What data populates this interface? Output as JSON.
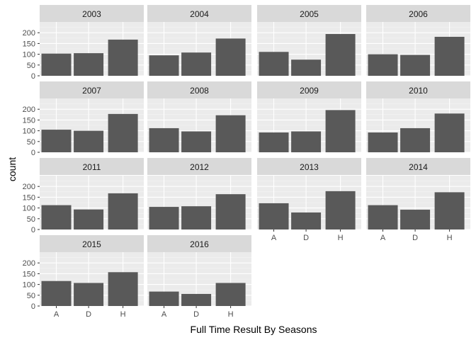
{
  "chart_data": {
    "type": "bar",
    "facet_by": "season",
    "xlabel": "Full Time Result By Seasons",
    "ylabel": "count",
    "categories": [
      "A",
      "D",
      "H"
    ],
    "y_ticks": [
      0,
      50,
      100,
      150,
      200
    ],
    "ylim": [
      0,
      250
    ],
    "grid": true,
    "facets": [
      {
        "label": "2003",
        "values": [
          103,
          105,
          168
        ]
      },
      {
        "label": "2004",
        "values": [
          95,
          108,
          173
        ]
      },
      {
        "label": "2005",
        "values": [
          111,
          75,
          194
        ]
      },
      {
        "label": "2006",
        "values": [
          100,
          97,
          181
        ]
      },
      {
        "label": "2007",
        "values": [
          105,
          100,
          178
        ]
      },
      {
        "label": "2008",
        "values": [
          112,
          97,
          172
        ]
      },
      {
        "label": "2009",
        "values": [
          92,
          97,
          196
        ]
      },
      {
        "label": "2010",
        "values": [
          92,
          112,
          180
        ]
      },
      {
        "label": "2011",
        "values": [
          113,
          93,
          168
        ]
      },
      {
        "label": "2012",
        "values": [
          105,
          108,
          164
        ]
      },
      {
        "label": "2013",
        "values": [
          122,
          79,
          178
        ]
      },
      {
        "label": "2014",
        "values": [
          113,
          92,
          173
        ]
      },
      {
        "label": "2015",
        "values": [
          116,
          107,
          157
        ]
      },
      {
        "label": "2016",
        "values": [
          67,
          56,
          107
        ]
      }
    ],
    "colors": {
      "bar": "#595959",
      "panel_background": "#ebebeb",
      "strip_background": "#d9d9d9",
      "grid_major": "#ffffff",
      "grid_minor": "#f4f4f4",
      "tick_text": "#4d4d4d",
      "strip_text": "#1a1a1a"
    }
  }
}
